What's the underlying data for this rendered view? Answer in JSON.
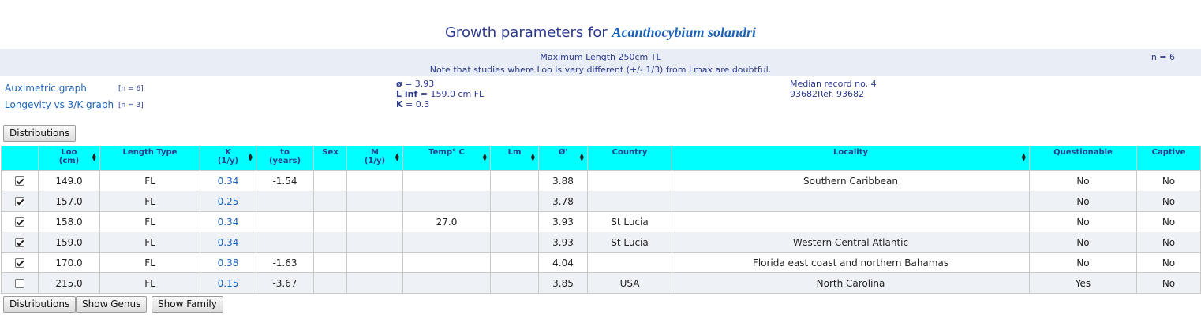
{
  "title": {
    "prefix": "Growth parameters for",
    "species": "Acanthocybium solandri"
  },
  "info": {
    "max_length": "Maximum Length 250cm TL",
    "note": "Note that studies where Loo is very different (+/- 1/3) from Lmax are doubtful.",
    "n": "n = 6"
  },
  "links": {
    "auximetric": "Auximetric graph",
    "auximetric_n": "[n = 6]",
    "longevity": "Longevity vs 3/K graph",
    "longevity_n": "[n = 3]"
  },
  "stats": {
    "phi_label": "ø",
    "phi_value": "= 3.93",
    "linf_label": "L inf",
    "linf_value": "= 159.0 cm FL",
    "k_label": "K",
    "k_value": "= 0.3",
    "median": "Median record no. 4",
    "ref": "93682Ref. 93682"
  },
  "buttons": {
    "distributions": "Distributions",
    "show_genus": "Show Genus",
    "show_family": "Show Family"
  },
  "table": {
    "headers": {
      "loo": "Loo\n(cm)",
      "length_type": "Length Type",
      "k": "K\n(1/y)",
      "to": "to\n(years)",
      "sex": "Sex",
      "m": "M\n(1/y)",
      "temp": "Temp° C",
      "lm": "Lm",
      "phi": "Ø'",
      "country": "Country",
      "locality": "Locality",
      "questionable": "Questionable",
      "captive": "Captive"
    },
    "rows": [
      {
        "checked": true,
        "loo": "149.0",
        "type": "FL",
        "k": "0.34",
        "to": "-1.54",
        "sex": "",
        "m": "",
        "temp": "",
        "lm": "",
        "phi": "3.88",
        "country": "",
        "locality": "Southern Caribbean",
        "questionable": "No",
        "captive": "No"
      },
      {
        "checked": true,
        "loo": "157.0",
        "type": "FL",
        "k": "0.25",
        "to": "",
        "sex": "",
        "m": "",
        "temp": "",
        "lm": "",
        "phi": "3.78",
        "country": "",
        "locality": "",
        "questionable": "No",
        "captive": "No"
      },
      {
        "checked": true,
        "loo": "158.0",
        "type": "FL",
        "k": "0.34",
        "to": "",
        "sex": "",
        "m": "",
        "temp": "27.0",
        "lm": "",
        "phi": "3.93",
        "country": "St Lucia",
        "locality": "",
        "questionable": "No",
        "captive": "No"
      },
      {
        "checked": true,
        "loo": "159.0",
        "type": "FL",
        "k": "0.34",
        "to": "",
        "sex": "",
        "m": "",
        "temp": "",
        "lm": "",
        "phi": "3.93",
        "country": "St Lucia",
        "locality": "Western Central Atlantic",
        "questionable": "No",
        "captive": "No"
      },
      {
        "checked": true,
        "loo": "170.0",
        "type": "FL",
        "k": "0.38",
        "to": "-1.63",
        "sex": "",
        "m": "",
        "temp": "",
        "lm": "",
        "phi": "4.04",
        "country": "",
        "locality": "Florida east coast and northern Bahamas",
        "questionable": "No",
        "captive": "No"
      },
      {
        "checked": false,
        "loo": "215.0",
        "type": "FL",
        "k": "0.15",
        "to": "-3.67",
        "sex": "",
        "m": "",
        "temp": "",
        "lm": "",
        "phi": "3.85",
        "country": "USA",
        "locality": "North Carolina",
        "questionable": "Yes",
        "captive": "No"
      }
    ]
  }
}
